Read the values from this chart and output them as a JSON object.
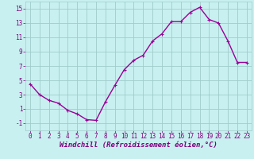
{
  "x": [
    0,
    1,
    2,
    3,
    4,
    5,
    6,
    7,
    8,
    9,
    10,
    11,
    12,
    13,
    14,
    15,
    16,
    17,
    18,
    19,
    20,
    21,
    22,
    23
  ],
  "y": [
    4.5,
    3.0,
    2.2,
    1.8,
    0.8,
    0.3,
    -0.5,
    -0.6,
    2.0,
    4.3,
    6.5,
    7.8,
    8.5,
    10.5,
    11.5,
    13.2,
    13.2,
    14.5,
    15.2,
    13.5,
    13.0,
    10.5,
    7.5,
    7.5
  ],
  "line_color": "#990099",
  "marker": "+",
  "background_color": "#c8f0f0",
  "grid_color": "#a0cccc",
  "xlabel": "Windchill (Refroidissement éolien,°C)",
  "xlabel_color": "#800080",
  "tick_color": "#800080",
  "ylim": [
    -2,
    16
  ],
  "xlim": [
    -0.5,
    23.5
  ],
  "yticks": [
    -1,
    1,
    3,
    5,
    7,
    9,
    11,
    13,
    15
  ],
  "xticks": [
    0,
    1,
    2,
    3,
    4,
    5,
    6,
    7,
    8,
    9,
    10,
    11,
    12,
    13,
    14,
    15,
    16,
    17,
    18,
    19,
    20,
    21,
    22,
    23
  ],
  "font_size_label": 6.5,
  "font_size_tick": 5.5,
  "marker_size": 3,
  "line_width": 1.0
}
